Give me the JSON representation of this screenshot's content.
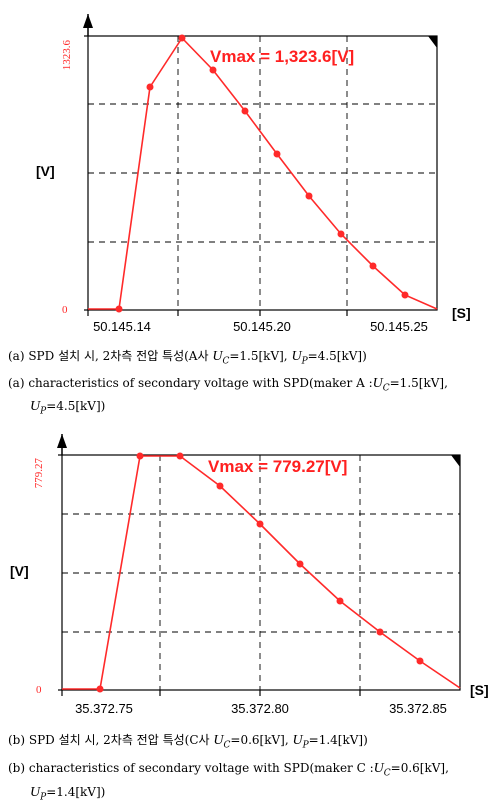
{
  "chart_data": [
    {
      "type": "line",
      "annotation": "Vmax = 1,323.6[V]",
      "ylabel": "[V]",
      "xlabel": "[S]",
      "y_tick_labels": [
        "1323.6",
        "0"
      ],
      "x_tick_labels": [
        "50.145.14",
        "50.145.20",
        "50.145.25"
      ],
      "ylim": [
        0,
        1323.6
      ],
      "x": [
        0.0,
        0.05,
        0.1,
        0.15,
        0.2,
        0.25,
        0.3,
        0.35,
        0.4,
        0.45,
        0.5
      ],
      "series": [
        {
          "values": [
            0,
            0,
            0,
            960,
            1323.6,
            1130,
            920,
            720,
            520,
            320,
            0
          ]
        }
      ],
      "series_points": [
        {
          "values": [
            0,
            960,
            1323.6,
            1130,
            920,
            720,
            520,
            320,
            110
          ]
        }
      ],
      "color": "#ff2a2a",
      "grid": true
    },
    {
      "type": "line",
      "annotation": "Vmax = 779.27[V]",
      "ylabel": "[V]",
      "xlabel": "[S]",
      "y_tick_labels": [
        "779.27",
        "0"
      ],
      "x_tick_labels": [
        "35.372.75",
        "35.372.80",
        "35.372.85"
      ],
      "ylim": [
        0,
        779.27
      ],
      "color": "#ff2a2a",
      "grid": true
    }
  ],
  "captions": {
    "a_ko_pre": "(a) SPD 설치 시, 2차측 전압 특성(A사 ",
    "a_ko_uc": "=1.5[kV], ",
    "a_ko_up": "=4.5[kV])",
    "a_en_line1_pre": "(a) characteristics of secondary voltage with SPD(maker A :",
    "a_en_uc": "=1.5[kV],",
    "a_en_up": "=4.5[kV])",
    "b_ko_pre": "(b) SPD 설치 시, 2차측 전압 특성(C사 ",
    "b_ko_uc": "=0.6[kV], ",
    "b_ko_up": "=1.4[kV])",
    "b_en_line1_pre": "(b) characteristics of secondary voltage with SPD(maker C :",
    "b_en_uc": "=0.6[kV],",
    "b_en_up": "=1.4[kV])",
    "u": "U",
    "c": "C",
    "p": "P"
  }
}
